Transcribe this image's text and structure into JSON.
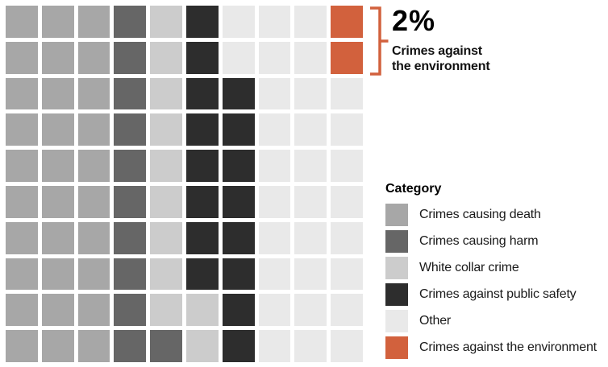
{
  "chart_data": {
    "type": "waffle",
    "description": "Waffle chart of 100 squares showing the share of crime categories; 2 of 100 squares are highlighted orange for crimes against the environment",
    "grid": {
      "rows": 10,
      "cols": 10,
      "cell_codes_by_row": [
        "DDDHWSOOOE",
        "DDDHWSOOOE",
        "DDDHWSSOOO",
        "DDDHWSSOOO",
        "DDDHWSSOOO",
        "DDDHWSSOOO",
        "DDDHWSSOOO",
        "DDDHWSSOOO",
        "DDDHWWSOOO",
        "DDDHHWSOOO"
      ]
    },
    "categories": [
      {
        "code": "D",
        "label": "Crimes causing death",
        "color": "#a7a7a7",
        "count": 30
      },
      {
        "code": "H",
        "label": "Crimes causing harm",
        "color": "#666666",
        "count": 11
      },
      {
        "code": "W",
        "label": "White collar crime",
        "color": "#cccccc",
        "count": 11
      },
      {
        "code": "S",
        "label": "Crimes against public safety",
        "color": "#2d2d2d",
        "count": 16
      },
      {
        "code": "O",
        "label": "Other",
        "color": "#e9e9e9",
        "count": 30
      },
      {
        "code": "E",
        "label": "Crimes against the environment",
        "color": "#d2613d",
        "count": 2
      }
    ],
    "legend": {
      "title": "Category",
      "position": "bottom-right"
    },
    "annotation": {
      "value": "2%",
      "label_line1": "Crimes against",
      "label_line2": "the environment",
      "bracket_color": "#d2613d"
    }
  }
}
